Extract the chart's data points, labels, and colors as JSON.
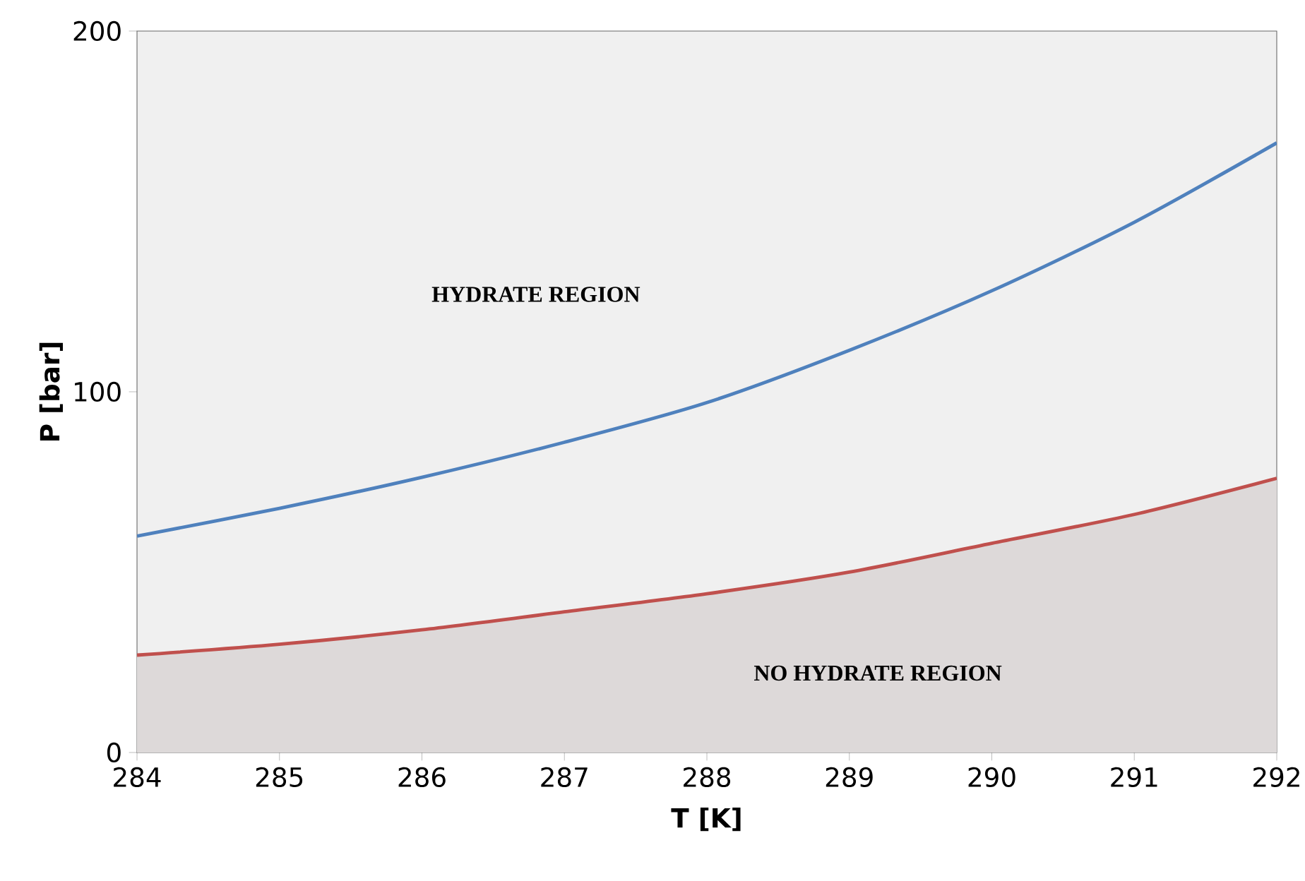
{
  "chart_data": {
    "type": "line",
    "xlabel": "T [K]",
    "ylabel": "P [bar]",
    "x": [
      284,
      285,
      286,
      287,
      288,
      289,
      290,
      291,
      292
    ],
    "series": [
      {
        "color": "#4f81bd",
        "values": [
          60,
          67.7,
          76.3,
          86,
          97,
          111.5,
          128,
          147,
          169
        ]
      },
      {
        "type": "area",
        "color": "#c0504d",
        "values": [
          27,
          30,
          34,
          39,
          44,
          50,
          58,
          66,
          76
        ]
      }
    ],
    "xlim": [
      284,
      292
    ],
    "ylim": [
      0,
      200
    ],
    "xticks": [
      284,
      285,
      286,
      287,
      288,
      289,
      290,
      291,
      292
    ],
    "yticks": [
      0,
      100,
      200
    ],
    "grid": false,
    "annotations": [
      "HYDRATE REGION",
      "NO HYDRATE REGION"
    ]
  }
}
